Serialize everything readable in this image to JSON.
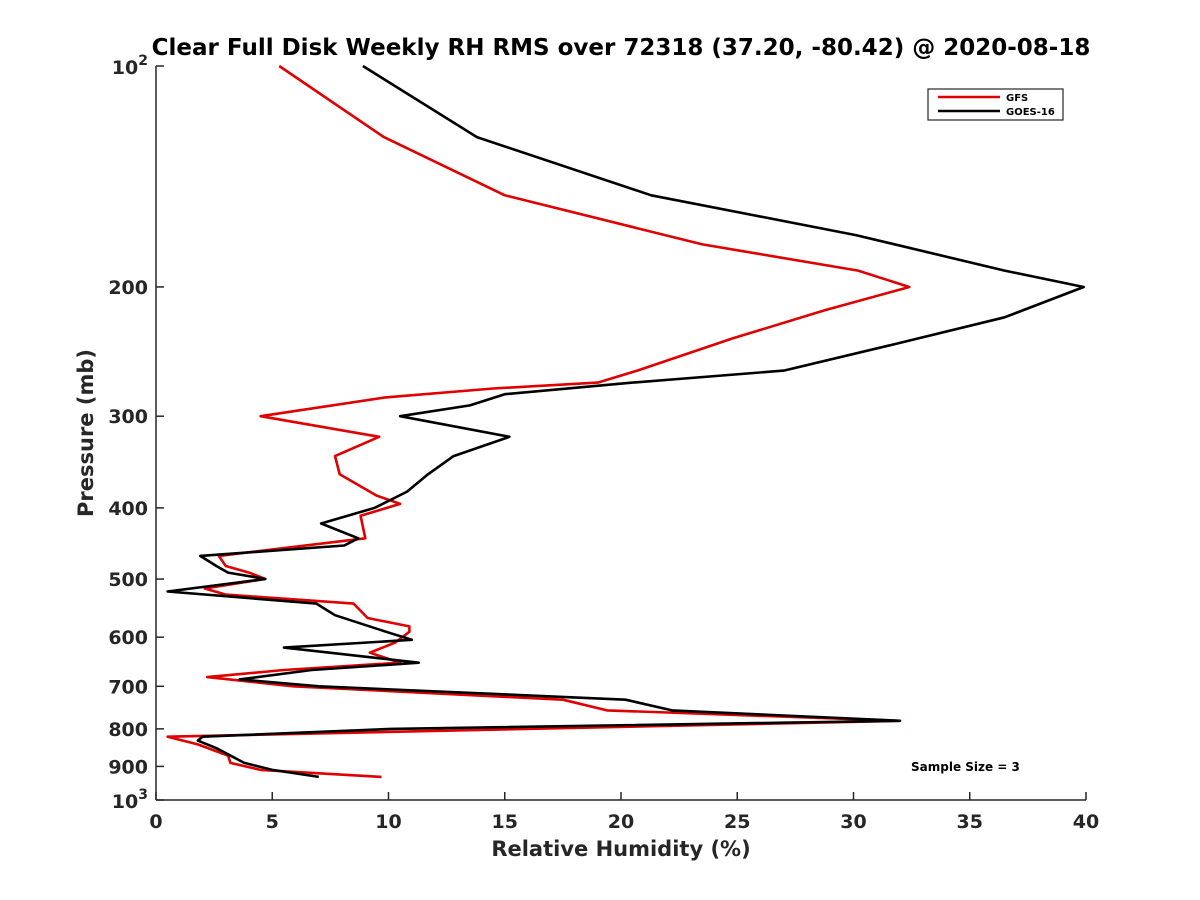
{
  "chart_data": {
    "type": "line",
    "title": "Clear Full Disk Weekly RH RMS over 72318 (37.20, -80.42) @ 2020-08-18",
    "xlabel": "Relative Humidity (%)",
    "ylabel": "Pressure (mb)",
    "xlim": [
      0,
      40
    ],
    "ylim": [
      100,
      1000
    ],
    "yscale": "log",
    "y_reversed": true,
    "x_ticks": [
      "0",
      "5",
      "10",
      "15",
      "20",
      "25",
      "30",
      "35",
      "40"
    ],
    "y_ticks": [
      {
        "value": 100,
        "base": "10",
        "exp": "2"
      },
      {
        "value": 200,
        "label": "200"
      },
      {
        "value": 300,
        "label": "300"
      },
      {
        "value": 400,
        "label": "400"
      },
      {
        "value": 500,
        "label": "500"
      },
      {
        "value": 600,
        "label": "600"
      },
      {
        "value": 700,
        "label": "700"
      },
      {
        "value": 800,
        "label": "800"
      },
      {
        "value": 900,
        "label": "900"
      },
      {
        "value": 1000,
        "base": "10",
        "exp": "3"
      }
    ],
    "grid": false,
    "legend_position": "top-right",
    "annotation": "Sample Size = 3",
    "series": [
      {
        "name": "GFS",
        "color": "#e00000",
        "points": [
          [
            5.3,
            100
          ],
          [
            9.8,
            125
          ],
          [
            15.0,
            150
          ],
          [
            23.5,
            175
          ],
          [
            30.2,
            190
          ],
          [
            32.4,
            200
          ],
          [
            28.8,
            215
          ],
          [
            24.8,
            235
          ],
          [
            20.7,
            260
          ],
          [
            19.0,
            270
          ],
          [
            14.5,
            275
          ],
          [
            9.8,
            283
          ],
          [
            4.5,
            300
          ],
          [
            9.6,
            320
          ],
          [
            7.7,
            340
          ],
          [
            7.9,
            360
          ],
          [
            9.5,
            385
          ],
          [
            10.5,
            395
          ],
          [
            8.8,
            410
          ],
          [
            9.0,
            440
          ],
          [
            2.7,
            465
          ],
          [
            3.0,
            480
          ],
          [
            4.0,
            490
          ],
          [
            4.7,
            500
          ],
          [
            2.1,
            515
          ],
          [
            3.0,
            525
          ],
          [
            8.5,
            540
          ],
          [
            9.1,
            565
          ],
          [
            10.9,
            580
          ],
          [
            10.9,
            590
          ],
          [
            10.3,
            610
          ],
          [
            9.2,
            630
          ],
          [
            10.5,
            650
          ],
          [
            5.5,
            665
          ],
          [
            2.2,
            680
          ],
          [
            5.9,
            700
          ],
          [
            17.5,
            730
          ],
          [
            19.4,
            755
          ],
          [
            22.0,
            760
          ],
          [
            32.0,
            780
          ],
          [
            0.5,
            820
          ],
          [
            1.8,
            840
          ],
          [
            3.1,
            870
          ],
          [
            3.2,
            890
          ],
          [
            4.5,
            910
          ],
          [
            9.7,
            930
          ]
        ]
      },
      {
        "name": "GOES-16",
        "color": "#000000",
        "points": [
          [
            8.9,
            100
          ],
          [
            13.8,
            125
          ],
          [
            21.3,
            150
          ],
          [
            30.1,
            170
          ],
          [
            36.5,
            190
          ],
          [
            39.9,
            200
          ],
          [
            36.5,
            220
          ],
          [
            31.6,
            240
          ],
          [
            27.0,
            260
          ],
          [
            20.5,
            270
          ],
          [
            15.0,
            280
          ],
          [
            13.5,
            290
          ],
          [
            10.5,
            300
          ],
          [
            15.2,
            320
          ],
          [
            12.8,
            340
          ],
          [
            11.7,
            360
          ],
          [
            10.8,
            380
          ],
          [
            9.4,
            400
          ],
          [
            7.1,
            420
          ],
          [
            8.7,
            440
          ],
          [
            8.1,
            450
          ],
          [
            1.9,
            465
          ],
          [
            2.6,
            480
          ],
          [
            3.1,
            490
          ],
          [
            4.7,
            500
          ],
          [
            0.5,
            520
          ],
          [
            6.9,
            540
          ],
          [
            7.7,
            560
          ],
          [
            9.9,
            590
          ],
          [
            11.0,
            605
          ],
          [
            5.5,
            620
          ],
          [
            11.3,
            650
          ],
          [
            6.7,
            665
          ],
          [
            3.6,
            685
          ],
          [
            7.0,
            700
          ],
          [
            20.2,
            730
          ],
          [
            22.2,
            755
          ],
          [
            32.0,
            780
          ],
          [
            10.1,
            800
          ],
          [
            2.0,
            820
          ],
          [
            1.8,
            830
          ],
          [
            2.6,
            850
          ],
          [
            3.8,
            890
          ],
          [
            5.0,
            910
          ],
          [
            7.0,
            930
          ]
        ]
      }
    ]
  }
}
